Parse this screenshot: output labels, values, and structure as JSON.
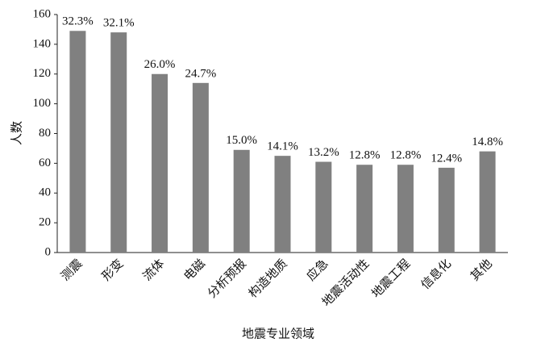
{
  "chart_data": {
    "type": "bar",
    "y_label": "人数",
    "x_label": "地震专业领域",
    "categories": [
      "测震",
      "形变",
      "流体",
      "电磁",
      "分析预报",
      "构造地质",
      "应急",
      "地震活动性",
      "地震工程",
      "信息化",
      "其他"
    ],
    "values": [
      149,
      148,
      120,
      114,
      69,
      65,
      61,
      59,
      59,
      57,
      68
    ],
    "annotations": [
      "32.3%",
      "32.1%",
      "26.0%",
      "24.7%",
      "15.0%",
      "14.1%",
      "13.2%",
      "12.8%",
      "12.8%",
      "12.4%",
      "14.8%"
    ],
    "color": "#808080",
    "ylim": [
      0,
      160
    ],
    "yticks": [
      0,
      20,
      40,
      60,
      80,
      100,
      120,
      140,
      160
    ],
    "grid": false
  }
}
